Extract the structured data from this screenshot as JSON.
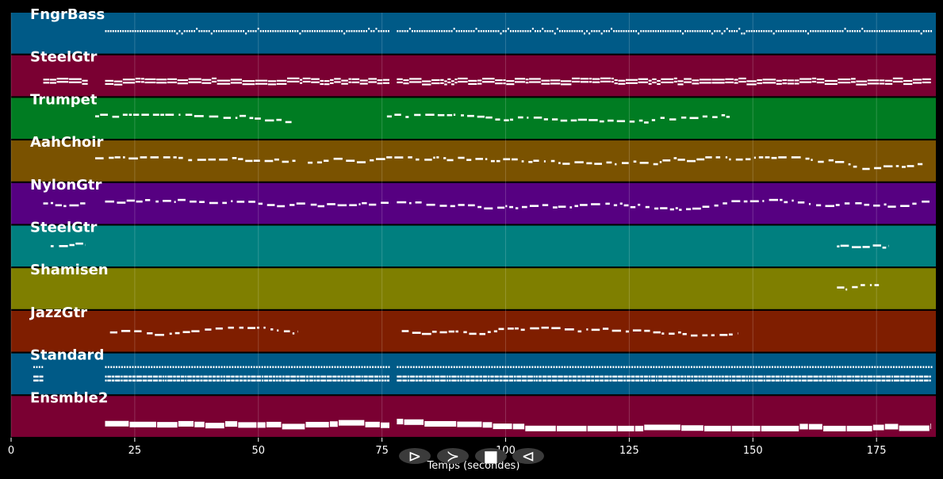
{
  "chart_data": {
    "type": "piano-roll",
    "xlabel": "Temps (secondes)",
    "xlim": [
      0,
      187
    ],
    "xticks": [
      0,
      25,
      50,
      75,
      100,
      125,
      150,
      175
    ],
    "xtick_labels": [
      "0",
      "25",
      "50",
      "75",
      "100",
      "125",
      "150",
      "175"
    ],
    "grid": true,
    "tracks": [
      {
        "name": "FngrBass",
        "color": "#005a87",
        "segments": [
          [
            19,
            76.5
          ],
          [
            78,
            186
          ]
        ],
        "pattern": "dots"
      },
      {
        "name": "SteelGtr",
        "color": "#7a0032",
        "segments": [
          [
            6.5,
            15.5
          ],
          [
            19,
            76.5
          ],
          [
            78,
            186
          ]
        ],
        "pattern": "dense"
      },
      {
        "name": "Trumpet",
        "color": "#007c22",
        "segments": [
          [
            17,
            57.5
          ],
          [
            76,
            145.5
          ]
        ],
        "pattern": "melody"
      },
      {
        "name": "AahChoir",
        "color": "#7a5200",
        "segments": [
          [
            17,
            57.5
          ],
          [
            60,
            185
          ]
        ],
        "pattern": "melody"
      },
      {
        "name": "NylonGtr",
        "color": "#560081",
        "segments": [
          [
            6.5,
            15
          ],
          [
            19,
            76.5
          ],
          [
            78,
            186
          ]
        ],
        "pattern": "melody"
      },
      {
        "name": "SteelGtr",
        "color": "#007f7f",
        "segments": [
          [
            8,
            15
          ],
          [
            167,
            177.5
          ]
        ],
        "pattern": "melody"
      },
      {
        "name": "Shamisen",
        "color": "#7f7f00",
        "segments": [
          [
            167,
            176
          ]
        ],
        "pattern": "melody"
      },
      {
        "name": "JazzGtr",
        "color": "#7f1e00",
        "segments": [
          [
            20,
            58
          ],
          [
            79,
            147
          ]
        ],
        "pattern": "melody"
      },
      {
        "name": "Standard",
        "color": "#005a87",
        "segments": [
          [
            4.5,
            6.5
          ],
          [
            19,
            76.5
          ],
          [
            78,
            186
          ]
        ],
        "pattern": "drums"
      },
      {
        "name": "Ensmble2",
        "color": "#7a0032",
        "segments": [
          [
            19,
            76.5
          ],
          [
            78,
            186
          ]
        ],
        "pattern": "blocks"
      }
    ]
  },
  "controls": [
    {
      "name": "play-button",
      "glyph": "⊳"
    },
    {
      "name": "fast-forward-button",
      "glyph": "≻"
    },
    {
      "name": "stop-button",
      "glyph": "■"
    },
    {
      "name": "rewind-button",
      "glyph": "⊲"
    }
  ]
}
